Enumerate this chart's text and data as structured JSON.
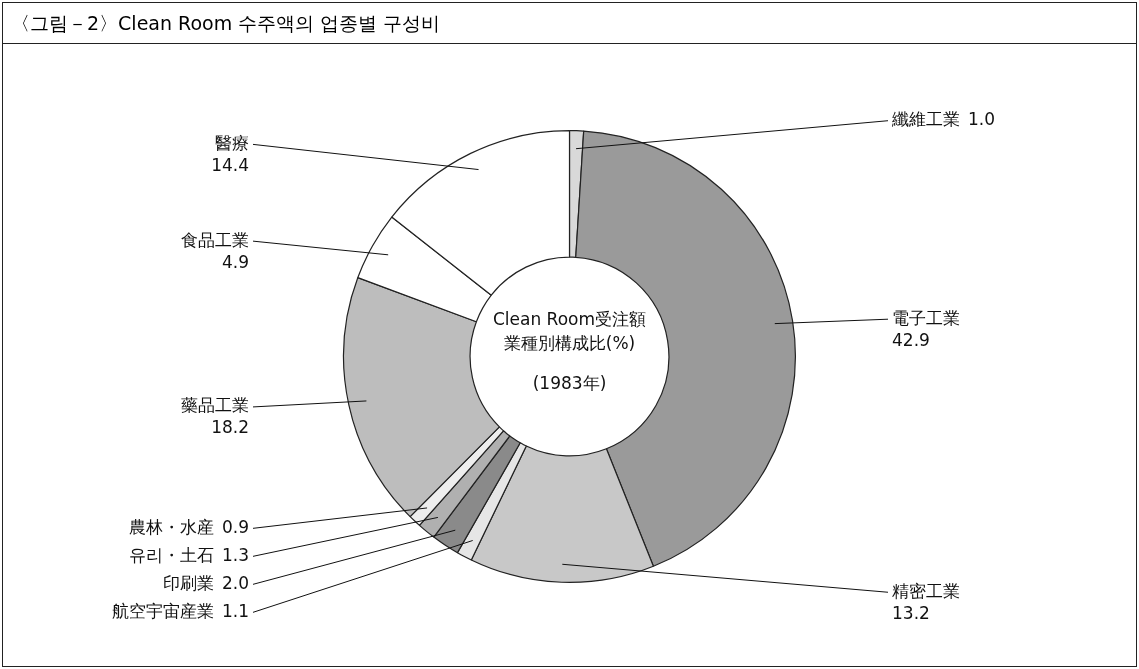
{
  "chart_data": {
    "type": "donut",
    "title": "〈그림－2〉Clean Room 수주액의 업종별 구성비",
    "categories": [
      "纖維工業",
      "電子工業",
      "精密工業",
      "航空宇宙産業",
      "印刷業",
      "유리・土石",
      "農林・水産",
      "藥品工業",
      "食品工業",
      "醫療"
    ],
    "values": [
      1.0,
      42.9,
      13.2,
      1.1,
      2.0,
      1.3,
      0.9,
      18.2,
      4.9,
      14.4
    ],
    "colors": [
      "#d9d9d9",
      "#9a9a9a",
      "#c8c8c8",
      "#e6e6e6",
      "#8a8a8a",
      "#b0b0b0",
      "#eeeeee",
      "#bdbdbd",
      "#ffffff",
      "#ffffff"
    ],
    "value_labels": [
      "1.0",
      "42.9",
      "13.2",
      "1.1",
      "2.0",
      "1.3",
      "0.9",
      "18.2",
      "4.9",
      "14.4"
    ],
    "legend": false,
    "annotations": [
      "Clean Room受注額",
      "業種別構成比(%)",
      "(1983年)"
    ]
  }
}
